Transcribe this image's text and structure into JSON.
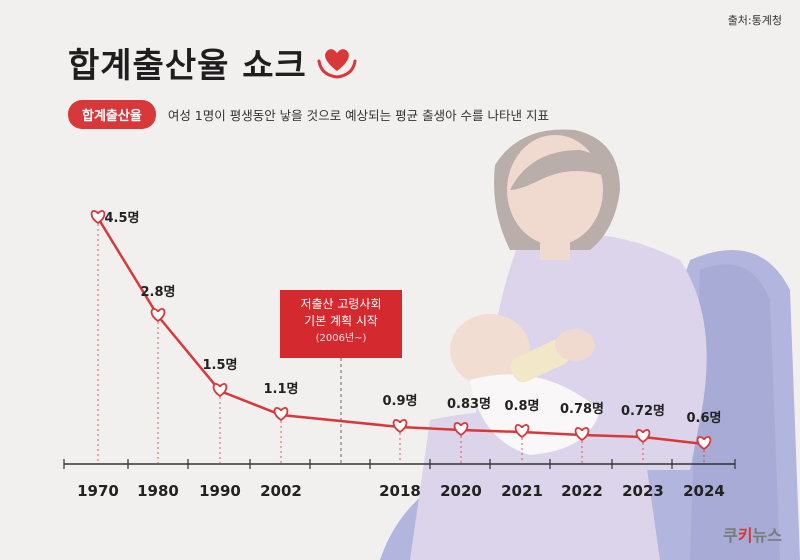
{
  "source": "출처:통계청",
  "title": "합계출산율 쇼크",
  "definition": {
    "badge": "합계출산율",
    "text": "여성 1명이 평생동안 낳을 것으로 예상되는 평균 출생아 수를 나타낸 지표"
  },
  "annotation": {
    "line1": "저출산 고령사회",
    "line2": "기본 계획 시작",
    "line3": "(2006년~)"
  },
  "brand": {
    "part1": "쿠",
    "part2": "키",
    "part3": "뉴스"
  },
  "colors": {
    "line": "#d9383b",
    "accent": "#d42a2f",
    "background": "#f2efef"
  },
  "icons": [
    "heart-in-hands-icon",
    "heart-marker-icon"
  ],
  "chart_data": {
    "type": "line",
    "title": "합계출산율 쇼크",
    "xlabel": "",
    "ylabel": "",
    "categories": [
      "1970",
      "1980",
      "1990",
      "2002",
      "2018",
      "2020",
      "2021",
      "2022",
      "2023",
      "2024"
    ],
    "values": [
      4.5,
      2.8,
      1.5,
      1.1,
      0.9,
      0.83,
      0.8,
      0.78,
      0.72,
      0.6
    ],
    "data_labels": [
      "4.5명",
      "2.8명",
      "1.5명",
      "1.1명",
      "0.9명",
      "0.83명",
      "0.8명",
      "0.78명",
      "0.72명",
      "0.6명"
    ],
    "grid": false,
    "legend": "none",
    "ylim": [
      0.6,
      4.5
    ]
  }
}
